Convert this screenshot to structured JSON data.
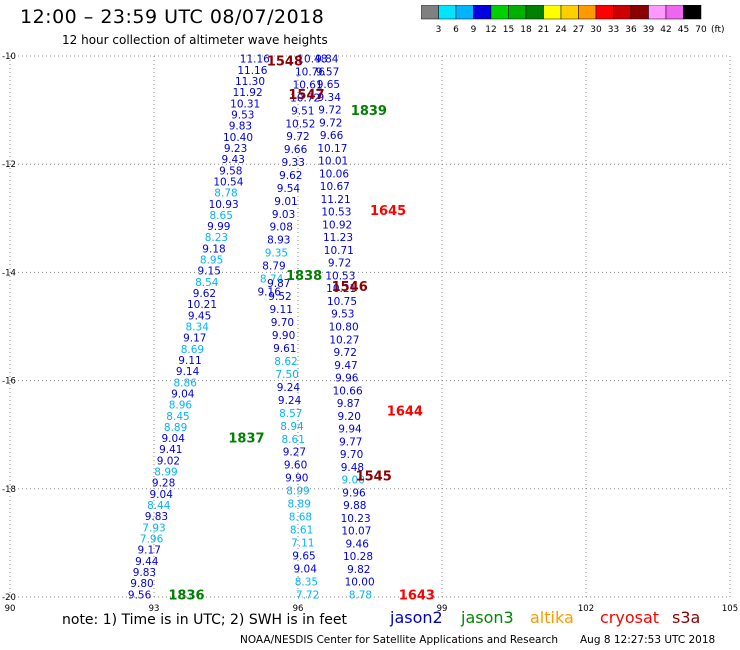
{
  "header": {
    "title": "12:00 – 23:59 UTC 08/07/2018",
    "subtitle": "12 hour collection of altimeter wave heights"
  },
  "colorbar": {
    "unit": "(ft)",
    "bins": [
      {
        "color": "#808080",
        "label": "3"
      },
      {
        "color": "#00e5ff",
        "label": "6"
      },
      {
        "color": "#00b4ff",
        "label": "9"
      },
      {
        "color": "#0000e0",
        "label": "12"
      },
      {
        "color": "#00d000",
        "label": "15"
      },
      {
        "color": "#00b000",
        "label": "18"
      },
      {
        "color": "#008000",
        "label": "21"
      },
      {
        "color": "#ffff00",
        "label": "24"
      },
      {
        "color": "#ffd000",
        "label": "27"
      },
      {
        "color": "#ff9900",
        "label": "30"
      },
      {
        "color": "#ff0000",
        "label": "33"
      },
      {
        "color": "#cc0000",
        "label": "36"
      },
      {
        "color": "#8b0000",
        "label": "39"
      },
      {
        "color": "#ff99ff",
        "label": "42"
      },
      {
        "color": "#ee66ee",
        "label": "45"
      },
      {
        "color": "#000000",
        "label": "70"
      }
    ]
  },
  "map": {
    "lon_range": [
      90,
      105
    ],
    "lat_range": [
      -20,
      -10
    ],
    "x_ticks": [
      90,
      93,
      96,
      99,
      102,
      105
    ],
    "y_ticks": [
      -10,
      -12,
      -14,
      -16,
      -18,
      -20
    ],
    "x_tick_labels": [
      "90",
      "93",
      "96",
      "99",
      "102",
      "105"
    ],
    "y_tick_labels": [
      "-10",
      "-12",
      "-14",
      "-16",
      "-18",
      "-20"
    ]
  },
  "tracks": [
    {
      "id": "jasonA",
      "lon_top": 95.1,
      "lon_bottom": 92.7,
      "lat_top": -10.05,
      "lat_bottom": -19.95,
      "values": [
        "11.16",
        "11.16",
        "11.30",
        "11.92",
        "10.31",
        "9.53",
        "9.83",
        "10.40",
        "9.23",
        "9.43",
        "9.58",
        "10.54",
        "8.78",
        "10.93",
        "8.65",
        "9.99",
        "8.23",
        "9.18",
        "8.95",
        "9.15",
        "8.54",
        "9.62",
        "10.21",
        "9.45",
        "8.34",
        "9.17",
        "8.69",
        "9.11",
        "9.14",
        "8.86",
        "9.04",
        "8.96",
        "8.45",
        "8.89",
        "9.04",
        "9.41",
        "9.02",
        "8.99",
        "9.28",
        "9.04",
        "8.44",
        "9.83",
        "7.93",
        "7.96",
        "9.17",
        "9.44",
        "9.83",
        "9.80",
        "9.56"
      ],
      "colors": [
        "#0000e0",
        "#0000e0",
        "#0000e0",
        "#0000e0",
        "#0000e0",
        "#0000e0",
        "#0000e0",
        "#0000e0",
        "#0000e0",
        "#0000e0",
        "#0000e0",
        "#0000e0",
        "#00b4ff",
        "#0000e0",
        "#00b4ff",
        "#0000e0",
        "#00b4ff",
        "#0000e0",
        "#00b4ff",
        "#0000e0",
        "#00b4ff",
        "#0000e0",
        "#0000e0",
        "#0000e0",
        "#00b4ff",
        "#0000e0",
        "#00b4ff",
        "#0000e0",
        "#0000e0",
        "#00b4ff",
        "#0000e0",
        "#00b4ff",
        "#00b4ff",
        "#00b4ff",
        "#0000e0",
        "#0000e0",
        "#0000e0",
        "#00b4ff",
        "#0000e0",
        "#0000e0",
        "#00b4ff",
        "#0000e0",
        "#00b4ff",
        "#00b4ff",
        "#0000e0",
        "#0000e0",
        "#0000e0",
        "#0000e0",
        "#0000e0"
      ]
    },
    {
      "id": "jasonB",
      "lon_top": 96.3,
      "lon_bottom": 95.4,
      "lat_top": -10.05,
      "lat_bottom": -14.35,
      "values": [
        "10.48",
        "10.76",
        "10.61",
        "10.72",
        "9.51",
        "10.52",
        "9.72",
        "9.66",
        "9.33",
        "9.62",
        "9.54",
        "9.01",
        "9.03",
        "9.08",
        "8.93",
        "9.35",
        "8.79",
        "8.74",
        "9.16"
      ],
      "colors": [
        "#0000e0",
        "#0000e0",
        "#0000e0",
        "#0000e0",
        "#0000e0",
        "#0000e0",
        "#0000e0",
        "#0000e0",
        "#0000e0",
        "#0000e0",
        "#0000e0",
        "#0000e0",
        "#0000e0",
        "#0000e0",
        "#0000e0",
        "#00b4ff",
        "#0000e0",
        "#00b4ff",
        "#0000e0"
      ]
    },
    {
      "id": "jasonC",
      "lon_top": 95.6,
      "lon_bottom": 96.2,
      "lat_top": -14.2,
      "lat_bottom": -19.95,
      "values": [
        "9.87",
        "9.52",
        "9.11",
        "9.70",
        "9.90",
        "9.61",
        "8.62",
        "7.50",
        "9.24",
        "9.24",
        "8.57",
        "8.94",
        "8.61",
        "9.27",
        "9.60",
        "9.90",
        "8.99",
        "8.89",
        "8.68",
        "8.61",
        "7.11",
        "9.65",
        "9.04",
        "8.35",
        "7.72"
      ],
      "colors": [
        "#0000e0",
        "#0000e0",
        "#0000e0",
        "#0000e0",
        "#0000e0",
        "#0000e0",
        "#00b4ff",
        "#00b4ff",
        "#0000e0",
        "#0000e0",
        "#00b4ff",
        "#00b4ff",
        "#00b4ff",
        "#0000e0",
        "#0000e0",
        "#0000e0",
        "#00b4ff",
        "#00b4ff",
        "#00b4ff",
        "#00b4ff",
        "#00b4ff",
        "#0000e0",
        "#0000e0",
        "#00b4ff",
        "#00b4ff"
      ]
    },
    {
      "id": "jasonD",
      "lon_top": 96.6,
      "lon_bottom": 97.3,
      "lat_top": -10.05,
      "lat_bottom": -19.95,
      "values": [
        "9.84",
        "9.57",
        "9.65",
        "9.34",
        "9.72",
        "9.72",
        "9.66",
        "10.17",
        "10.01",
        "10.06",
        "10.67",
        "11.21",
        "10.53",
        "10.92",
        "11.23",
        "10.71",
        "9.72",
        "10.53",
        "10.21",
        "10.75",
        "9.53",
        "10.80",
        "10.27",
        "9.72",
        "9.47",
        "9.96",
        "10.66",
        "9.87",
        "9.20",
        "9.94",
        "9.77",
        "9.70",
        "9.48",
        "9.00",
        "9.96",
        "9.88",
        "10.23",
        "10.07",
        "9.46",
        "10.28",
        "9.82",
        "10.00",
        "8.78"
      ],
      "colors": [
        "#0000e0",
        "#0000e0",
        "#0000e0",
        "#0000e0",
        "#0000e0",
        "#0000e0",
        "#0000e0",
        "#0000e0",
        "#0000e0",
        "#0000e0",
        "#0000e0",
        "#0000e0",
        "#0000e0",
        "#0000e0",
        "#0000e0",
        "#0000e0",
        "#0000e0",
        "#0000e0",
        "#0000e0",
        "#0000e0",
        "#0000e0",
        "#0000e0",
        "#0000e0",
        "#0000e0",
        "#0000e0",
        "#0000e0",
        "#0000e0",
        "#0000e0",
        "#0000e0",
        "#0000e0",
        "#0000e0",
        "#0000e0",
        "#0000e0",
        "#00b4ff",
        "#0000e0",
        "#0000e0",
        "#0000e0",
        "#0000e0",
        "#0000e0",
        "#0000e0",
        "#0000e0",
        "#0000e0",
        "#00b4ff"
      ]
    }
  ],
  "time_labels": [
    {
      "text": "1548",
      "lon": 95.35,
      "lat": -10.08,
      "color": "#8b0000"
    },
    {
      "text": "1547",
      "lon": 95.8,
      "lat": -10.7,
      "color": "#8b0000"
    },
    {
      "text": "1839",
      "lon": 97.1,
      "lat": -11.0,
      "color": "#008000"
    },
    {
      "text": "1645",
      "lon": 97.5,
      "lat": -12.85,
      "color": "#ff0000"
    },
    {
      "text": "1838",
      "lon": 95.75,
      "lat": -14.05,
      "color": "#008000"
    },
    {
      "text": "1546",
      "lon": 96.7,
      "lat": -14.25,
      "color": "#8b0000"
    },
    {
      "text": "1644",
      "lon": 97.85,
      "lat": -16.55,
      "color": "#ff0000"
    },
    {
      "text": "1837",
      "lon": 94.55,
      "lat": -17.05,
      "color": "#008000"
    },
    {
      "text": "1545",
      "lon": 97.2,
      "lat": -17.75,
      "color": "#8b0000"
    },
    {
      "text": "1836",
      "lon": 93.3,
      "lat": -19.95,
      "color": "#008000"
    },
    {
      "text": "1643",
      "lon": 98.1,
      "lat": -19.95,
      "color": "#ff0000"
    }
  ],
  "notes": {
    "text": "note:  1) Time is in UTC;  2) SWH is in feet"
  },
  "satellites": [
    {
      "name": "jason2",
      "color": "#0000cc",
      "left": 390
    },
    {
      "name": "jason3",
      "color": "#008800",
      "left": 461
    },
    {
      "name": "altika",
      "color": "#ff9900",
      "left": 530
    },
    {
      "name": "cryosat",
      "color": "#ff0000",
      "left": 600
    },
    {
      "name": "s3a",
      "color": "#8b0000",
      "left": 672
    }
  ],
  "footer": {
    "credit": "NOAA/NESDIS Center for Satellite Applications and Research",
    "timestamp": "Aug  8 12:27:53 UTC 2018"
  }
}
